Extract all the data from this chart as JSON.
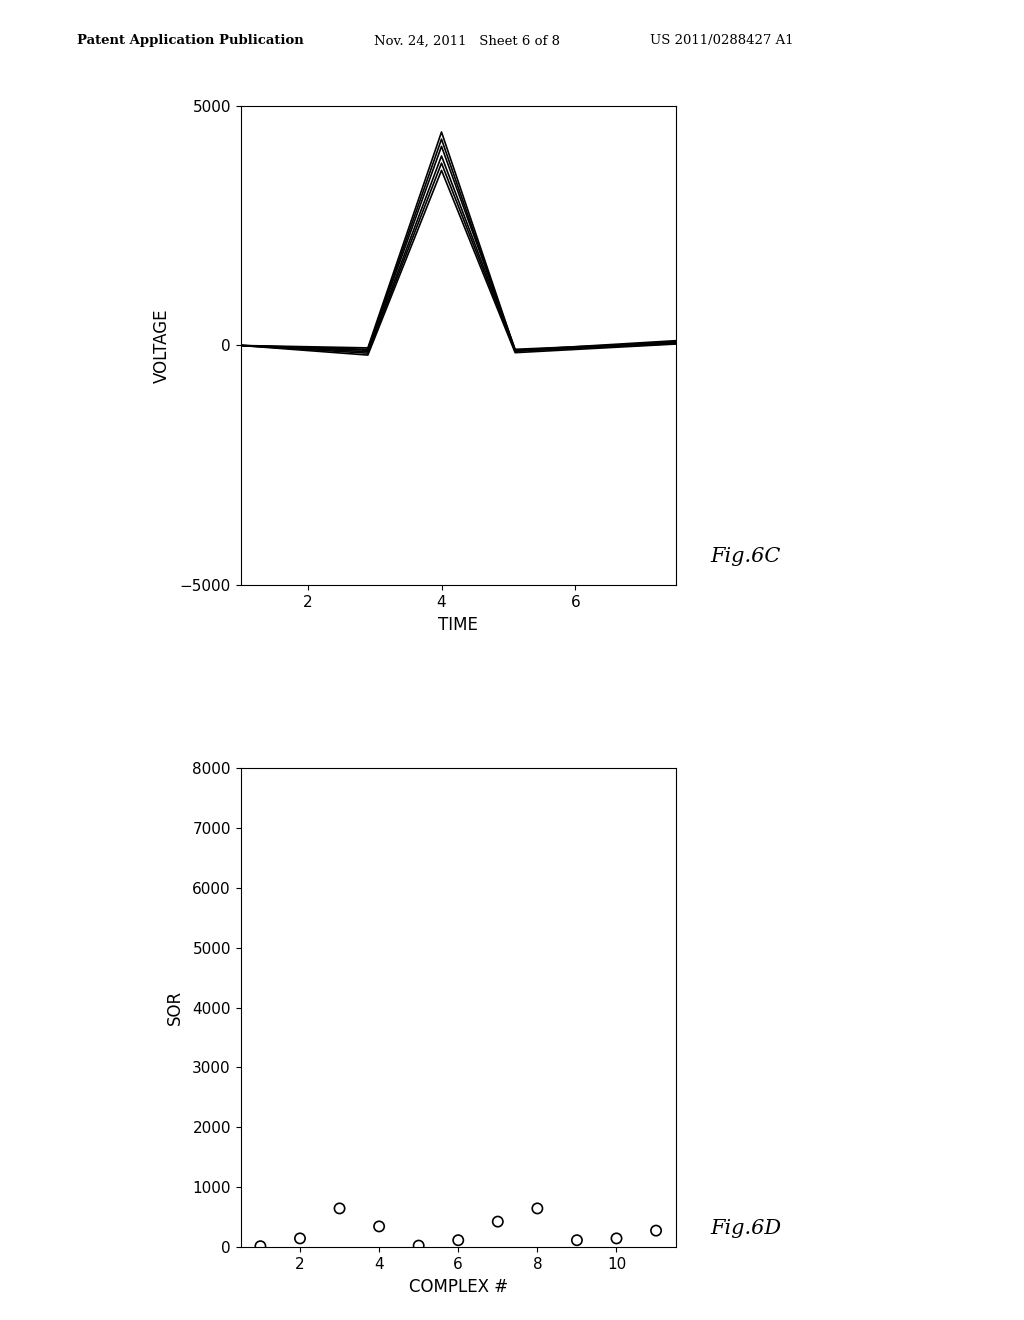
{
  "fig6c": {
    "xlabel": "TIME",
    "ylabel": "VOLTAGE",
    "xlim": [
      1.0,
      7.5
    ],
    "ylim": [
      -5000,
      5000
    ],
    "xticks": [
      2,
      4,
      6
    ],
    "yticks": [
      -5000,
      0,
      5000
    ],
    "lines": [
      {
        "x": [
          1.0,
          2.9,
          4.0,
          5.1,
          7.5
        ],
        "y": [
          0,
          -50,
          4450,
          -100,
          100
        ]
      },
      {
        "x": [
          1.0,
          2.9,
          4.0,
          5.1,
          7.5
        ],
        "y": [
          0,
          -80,
          4300,
          -120,
          80
        ]
      },
      {
        "x": [
          1.0,
          2.9,
          4.0,
          5.1,
          7.5
        ],
        "y": [
          0,
          -100,
          4150,
          -80,
          60
        ]
      },
      {
        "x": [
          1.0,
          2.9,
          4.0,
          5.1,
          7.5
        ],
        "y": [
          0,
          -130,
          3950,
          -100,
          50
        ]
      },
      {
        "x": [
          1.0,
          2.9,
          4.0,
          5.1,
          7.5
        ],
        "y": [
          0,
          -160,
          3800,
          -120,
          40
        ]
      },
      {
        "x": [
          1.0,
          2.9,
          4.0,
          5.1,
          7.5
        ],
        "y": [
          0,
          -200,
          3650,
          -150,
          30
        ]
      }
    ],
    "line_color": "#000000",
    "line_width": 1.2
  },
  "fig6d": {
    "xlabel": "COMPLEX #",
    "ylabel": "SOR",
    "xlim": [
      0.5,
      11.5
    ],
    "ylim": [
      0,
      8000
    ],
    "xticks": [
      2,
      4,
      6,
      8,
      10
    ],
    "yticks": [
      0,
      1000,
      2000,
      3000,
      4000,
      5000,
      6000,
      7000,
      8000
    ],
    "scatter_x": [
      1,
      2,
      3,
      4,
      5,
      6,
      7,
      8,
      9,
      10,
      11
    ],
    "scatter_y": [
      20,
      150,
      650,
      350,
      30,
      120,
      430,
      650,
      120,
      150,
      280
    ],
    "marker_color": "none",
    "marker_edge": "#000000",
    "marker_size": 55
  },
  "header_left": "Patent Application Publication",
  "header_center": "Nov. 24, 2011   Sheet 6 of 8",
  "header_right": "US 2011/0288427 A1",
  "fig6c_label": "Fig.6C",
  "fig6d_label": "Fig.6D",
  "background_color": "#ffffff"
}
